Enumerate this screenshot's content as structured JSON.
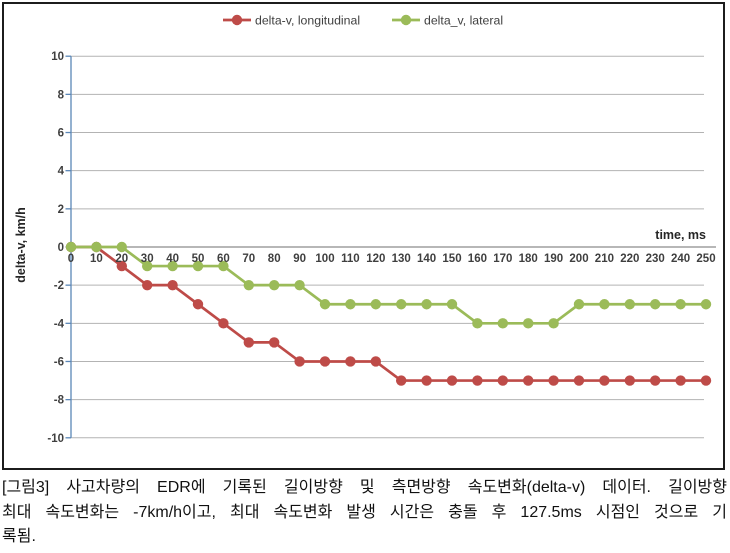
{
  "figure": {
    "caption_lines": [
      "[그림3] 사고차량의 EDR에 기록된 길이방향 및 측면방향 속도변화(delta-v) 데이터. 길이방향",
      "최대 속도변화는 -7km/h이고, 최대 속도변화 발생 시간은 충돌 후 127.5ms 시점인 것으로 기",
      "록됨."
    ]
  },
  "chart_data": {
    "type": "line",
    "title": "",
    "xlabel": "time, ms",
    "ylabel": "delta-v, km/h",
    "x": [
      0,
      10,
      20,
      30,
      40,
      50,
      60,
      70,
      80,
      90,
      100,
      110,
      120,
      130,
      140,
      150,
      160,
      170,
      180,
      190,
      200,
      210,
      220,
      230,
      240,
      250
    ],
    "ylim": [
      -10,
      10
    ],
    "ytick_step": 2,
    "grid": true,
    "legend_position": "top",
    "series": [
      {
        "name": "delta-v, longitudinal",
        "color": "#be4b48",
        "values": [
          0,
          0,
          -1,
          -2,
          -2,
          -3,
          -4,
          -5,
          -5,
          -6,
          -6,
          -6,
          -6,
          -7,
          -7,
          -7,
          -7,
          -7,
          -7,
          -7,
          -7,
          -7,
          -7,
          -7,
          -7,
          -7
        ]
      },
      {
        "name": "delta_v, lateral",
        "color": "#9bbb59",
        "values": [
          0,
          0,
          0,
          -1,
          -1,
          -1,
          -1,
          -2,
          -2,
          -2,
          -3,
          -3,
          -3,
          -3,
          -3,
          -3,
          -4,
          -4,
          -4,
          -4,
          -3,
          -3,
          -3,
          -3,
          -3,
          -3
        ]
      }
    ],
    "colors": {
      "grid": "#b3b3b3",
      "axis": "#5b87b7",
      "zero_axis": "#8c8c8c",
      "border": "#1c1c1c",
      "tick_text": "#3f3f3f"
    }
  }
}
